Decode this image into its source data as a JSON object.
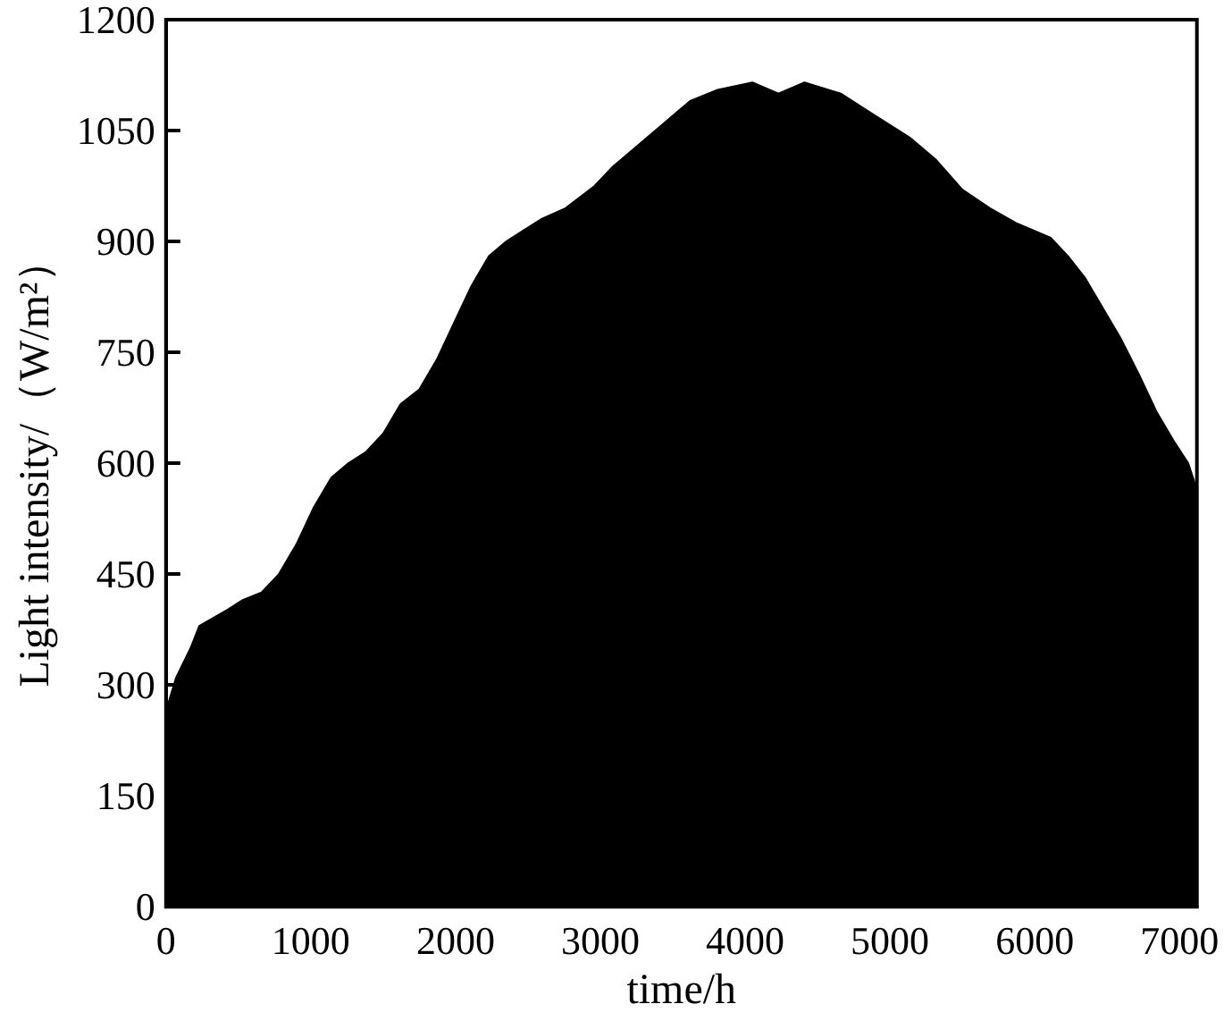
{
  "chart_data": {
    "type": "area",
    "xlabel": "time/h",
    "ylabel": "Light intensity/（W/m²）",
    "x": [
      0,
      70,
      170,
      230,
      410,
      530,
      660,
      780,
      900,
      1020,
      1140,
      1260,
      1380,
      1500,
      1620,
      1750,
      1870,
      1990,
      2110,
      2230,
      2350,
      2470,
      2590,
      2760,
      2960,
      3080,
      3260,
      3440,
      3620,
      3810,
      4050,
      4230,
      4410,
      4660,
      4900,
      5140,
      5320,
      5500,
      5690,
      5870,
      6110,
      6230,
      6350,
      6470,
      6590,
      6720,
      6840,
      6960,
      7060,
      7110
    ],
    "series": [
      {
        "color": "#000000",
        "values": [
          265,
          310,
          350,
          380,
          400,
          415,
          425,
          450,
          490,
          540,
          580,
          600,
          615,
          640,
          680,
          700,
          740,
          790,
          840,
          880,
          900,
          915,
          930,
          945,
          975,
          1000,
          1030,
          1060,
          1090,
          1105,
          1115,
          1100,
          1115,
          1100,
          1070,
          1040,
          1010,
          970,
          945,
          925,
          905,
          880,
          850,
          810,
          770,
          720,
          670,
          630,
          600,
          570
        ]
      }
    ],
    "xlim": [
      0,
      7120
    ],
    "xticks": [
      0,
      1000,
      2000,
      3000,
      4000,
      5000,
      6000,
      7000
    ],
    "ylim": [
      0,
      1200
    ],
    "yticks": [
      0,
      150,
      300,
      450,
      600,
      750,
      900,
      1050,
      1200
    ],
    "grid": false,
    "marker": "none"
  }
}
